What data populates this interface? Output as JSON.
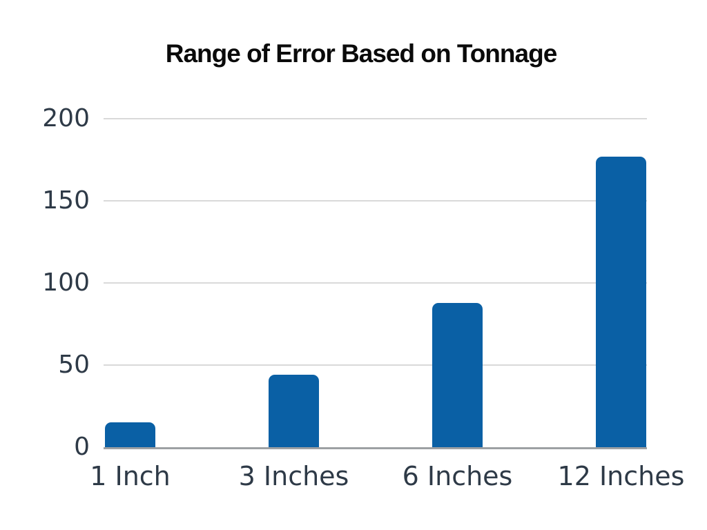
{
  "chart_data": {
    "type": "bar",
    "title": "Range of Error Based on Tonnage",
    "categories": [
      "1 Inch",
      "3 Inches",
      "6 Inches",
      "12 Inches"
    ],
    "values": [
      15,
      44,
      88,
      177
    ],
    "xlabel": "",
    "ylabel": "",
    "ylim": [
      0,
      200
    ],
    "yticks": [
      0,
      50,
      100,
      150,
      200
    ],
    "grid": true,
    "legend": "none",
    "colors": {
      "bar": "#0A60A5",
      "gridline": "#D9D9D9",
      "axis_line": "#9DA0A3",
      "tick_label": "#2E3A47",
      "title": "#0A0A0A",
      "background": "#FFFFFF"
    }
  }
}
